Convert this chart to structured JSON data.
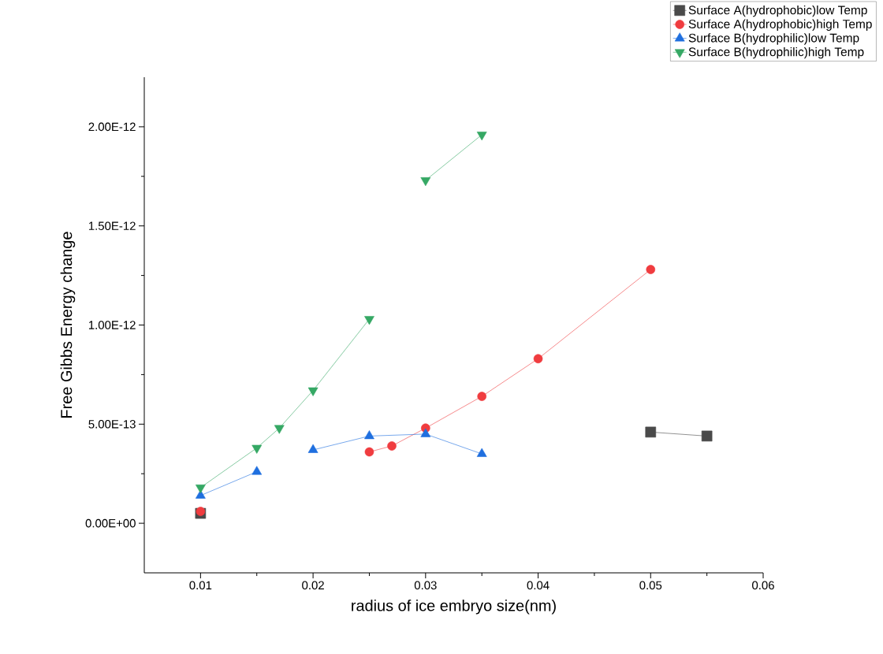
{
  "chart_data": {
    "type": "line",
    "xlabel": "radius of ice embryo size(nm)",
    "ylabel": "Free Gibbs Energy change",
    "xlim": [
      0.005,
      0.06
    ],
    "xticks": [
      0.01,
      0.02,
      0.03,
      0.04,
      0.05,
      0.06
    ],
    "ylim": [
      -2.5e-13,
      2.25e-12
    ],
    "yticks": [
      {
        "value": 0,
        "label": "0.00E+00"
      },
      {
        "value": 5e-13,
        "label": "5.00E-13"
      },
      {
        "value": 1e-12,
        "label": "1.00E-12"
      },
      {
        "value": 1.5e-12,
        "label": "1.50E-12"
      },
      {
        "value": 2e-12,
        "label": "2.00E-12"
      }
    ],
    "grid": false,
    "legend": "top right",
    "line_style": "solid",
    "series": [
      {
        "name": "Surface A(hydrophobic)low Temp",
        "color": "#4a4a4a",
        "marker": "square",
        "x": [
          0.01,
          0.03,
          0.05,
          0.055
        ],
        "values": [
          5e-14,
          null,
          4.6e-13,
          4.4e-13
        ]
      },
      {
        "name": "Surface A(hydrophobic)high Temp",
        "color": "#f03c3f",
        "marker": "circle",
        "x": [
          0.01,
          0.02,
          0.025,
          0.027,
          0.03,
          0.035,
          0.04,
          0.05
        ],
        "values": [
          6e-14,
          null,
          3.6e-13,
          3.9e-13,
          4.8e-13,
          6.4e-13,
          8.3e-13,
          1.28e-12
        ]
      },
      {
        "name": "Surface B(hydrophilic)low Temp",
        "color": "#1f6fdf",
        "marker": "triangle",
        "x": [
          0.01,
          0.015,
          0.0175,
          0.02,
          0.025,
          0.03,
          0.035
        ],
        "values": [
          1.4e-13,
          2.6e-13,
          null,
          3.7e-13,
          4.4e-13,
          4.5e-13,
          3.5e-13
        ]
      },
      {
        "name": "Surface B(hydrophilic)high Temp",
        "color": "#35a864",
        "marker": "triangle-down",
        "x": [
          0.01,
          0.015,
          0.017,
          0.02,
          0.025,
          0.0275,
          0.03,
          0.035
        ],
        "values": [
          1.8e-13,
          3.8e-13,
          4.8e-13,
          6.7e-13,
          1.03e-12,
          null,
          1.73e-12,
          1.96e-12
        ]
      }
    ]
  }
}
